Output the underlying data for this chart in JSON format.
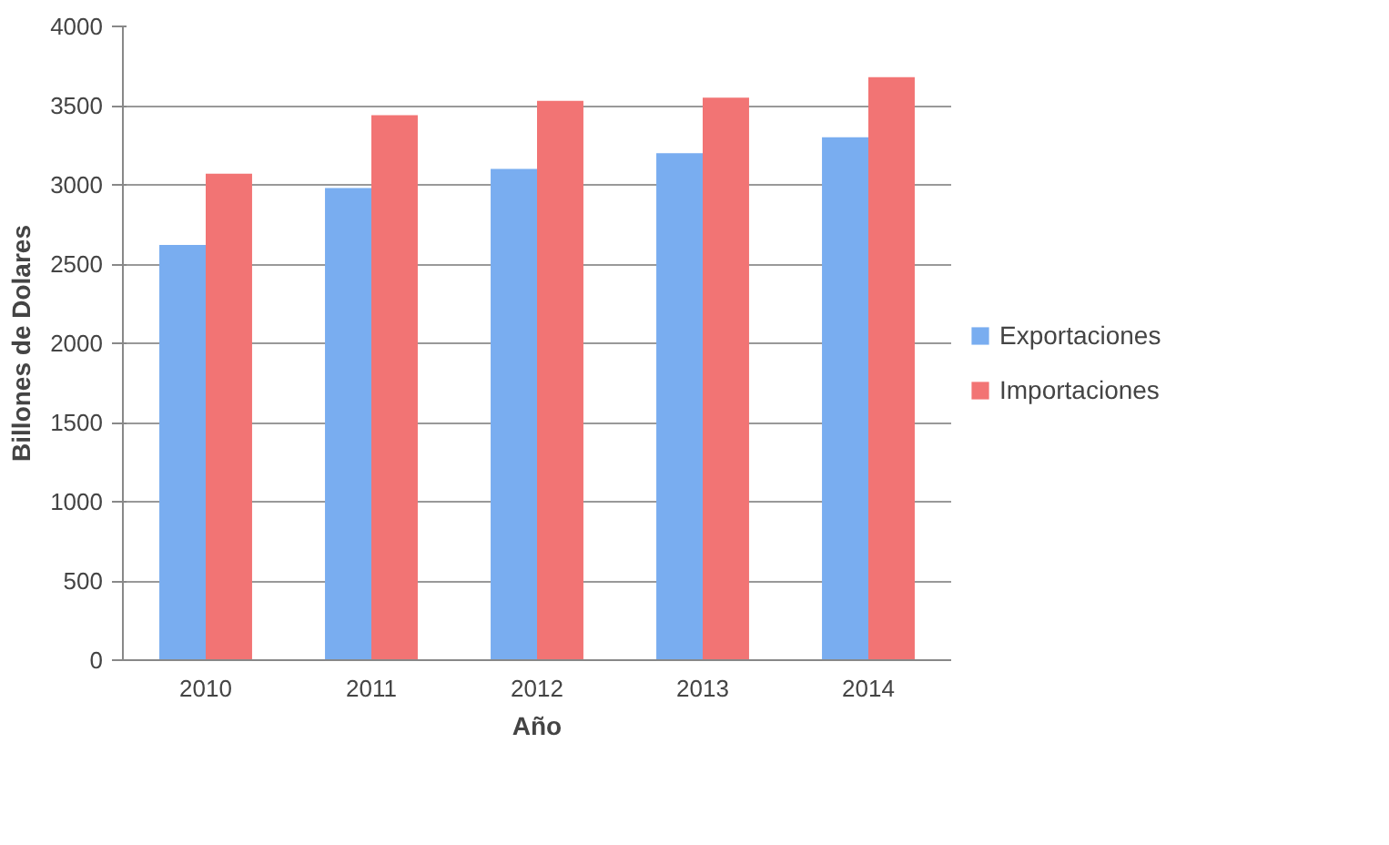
{
  "chart_data": {
    "type": "bar",
    "xlabel": "Año",
    "ylabel": "Billones de Dolares",
    "categories": [
      "2010",
      "2011",
      "2012",
      "2013",
      "2014"
    ],
    "series": [
      {
        "name": "Exportaciones",
        "color": "#79adf0",
        "values": [
          2620,
          2980,
          3100,
          3200,
          3300
        ]
      },
      {
        "name": "Importaciones",
        "color": "#f27474",
        "values": [
          3070,
          3440,
          3530,
          3550,
          3680
        ]
      }
    ],
    "ylim": [
      0,
      4000
    ],
    "yticks": [
      0,
      500,
      1000,
      1500,
      2000,
      2500,
      3000,
      3500,
      4000
    ],
    "grid": "y",
    "legend": "right"
  }
}
